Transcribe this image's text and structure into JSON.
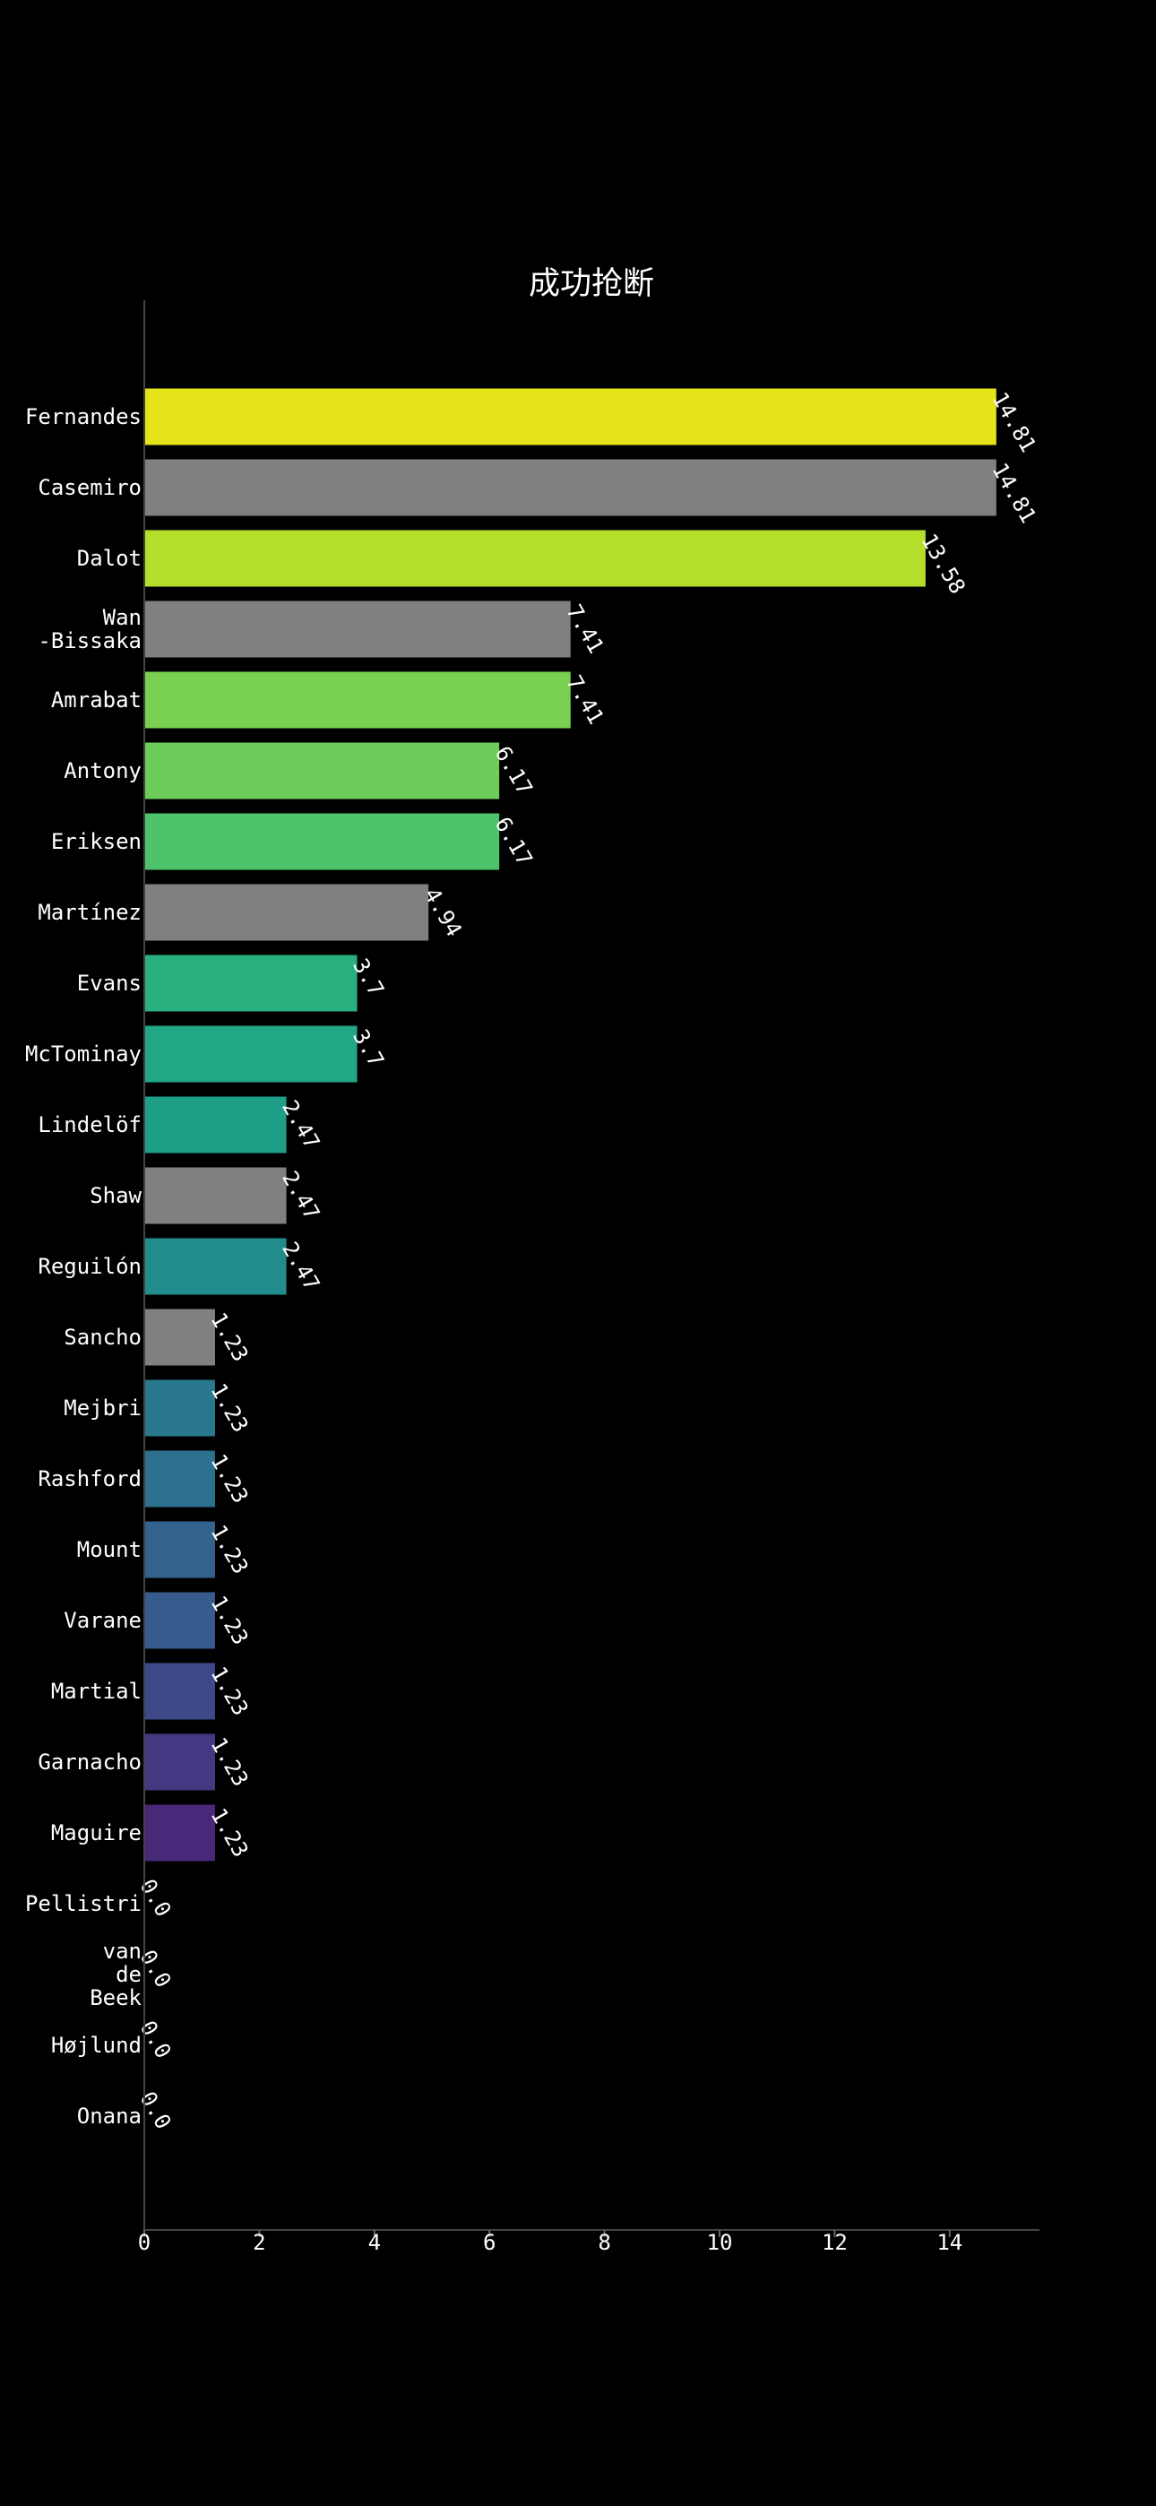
{
  "chart_data": {
    "type": "bar",
    "orientation": "horizontal",
    "title": "成功抢断",
    "xlabel": "",
    "ylabel": "",
    "xlim": [
      0,
      15.55
    ],
    "xticks": [
      0,
      2,
      4,
      6,
      8,
      10,
      12,
      14
    ],
    "grid": false,
    "legend": "none",
    "background": "#000000",
    "categories": [
      [
        "Fernandes"
      ],
      [
        "Casemiro"
      ],
      [
        "Dalot"
      ],
      [
        "Wan",
        "-Bissaka"
      ],
      [
        "Amrabat"
      ],
      [
        "Antony"
      ],
      [
        "Eriksen"
      ],
      [
        "Martínez"
      ],
      [
        "Evans"
      ],
      [
        "McTominay"
      ],
      [
        "Lindelöf"
      ],
      [
        "Shaw"
      ],
      [
        "Reguilón"
      ],
      [
        "Sancho"
      ],
      [
        "Mejbri"
      ],
      [
        "Rashford"
      ],
      [
        "Mount"
      ],
      [
        "Varane"
      ],
      [
        "Martial"
      ],
      [
        "Garnacho"
      ],
      [
        "Maguire"
      ],
      [
        "Pellistri"
      ],
      [
        "van",
        "de",
        "Beek"
      ],
      [
        "Højlund"
      ],
      [
        "Onana"
      ]
    ],
    "values": [
      14.81,
      14.81,
      13.58,
      7.41,
      7.41,
      6.17,
      6.17,
      4.94,
      3.7,
      3.7,
      2.47,
      2.47,
      2.47,
      1.23,
      1.23,
      1.23,
      1.23,
      1.23,
      1.23,
      1.23,
      1.23,
      0.0,
      0.0,
      0.0,
      0.0
    ],
    "value_labels": [
      "14.81",
      "14.81",
      "13.58",
      "7.41",
      "7.41",
      "6.17",
      "6.17",
      "4.94",
      "3.7",
      "3.7",
      "2.47",
      "2.47",
      "2.47",
      "1.23",
      "1.23",
      "1.23",
      "1.23",
      "1.23",
      "1.23",
      "1.23",
      "1.23",
      "0.0",
      "0.0",
      "0.0",
      "0.0"
    ],
    "colors": [
      "#e5e419",
      "#808080",
      "#b5de2b",
      "#808080",
      "#7ad151",
      "#6ccd5a",
      "#4ec36b",
      "#808080",
      "#2ab07f",
      "#22a884",
      "#1f9f88",
      "#808080",
      "#228c8d",
      "#808080",
      "#2a788e",
      "#2c718e",
      "#33638d",
      "#375b8d",
      "#3e4989",
      "#453882",
      "#482878",
      "#472d7b",
      "#46307e",
      "#433d84",
      "#404387"
    ]
  }
}
